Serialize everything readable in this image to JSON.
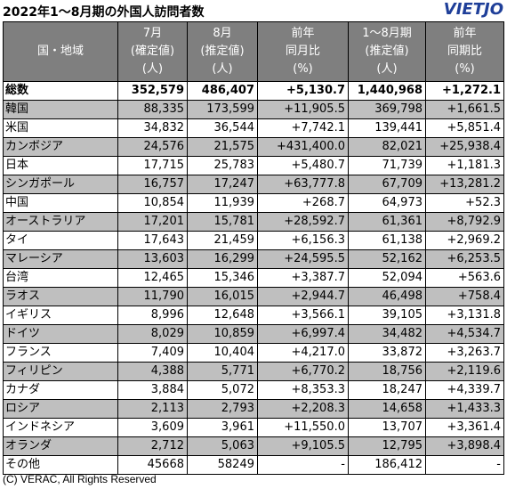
{
  "title": "2022年1～8月期の外国人訪問者数",
  "logo": "VIETJO",
  "headers": [
    [
      "国・地域"
    ],
    [
      "7月",
      "(確定値)",
      "(人)"
    ],
    [
      "8月",
      "(推定値)",
      "(人)"
    ],
    [
      "前年",
      "同月比",
      "(%)"
    ],
    [
      "1～8月期",
      "(推定値)",
      "(人)"
    ],
    [
      "前年",
      "同期比",
      "(%)"
    ]
  ],
  "rows": [
    [
      "総数",
      "352,579",
      "486,407",
      "+5,130.7",
      "1,440,968",
      "+1,272.1"
    ],
    [
      "韓国",
      "88,335",
      "173,599",
      "+11,905.5",
      "369,798",
      "+1,661.5"
    ],
    [
      "米国",
      "34,832",
      "36,544",
      "+7,742.1",
      "139,441",
      "+5,851.4"
    ],
    [
      "カンボジア",
      "24,576",
      "21,575",
      "+431,400.0",
      "82,021",
      "+25,938.4"
    ],
    [
      "日本",
      "17,715",
      "25,783",
      "+5,480.7",
      "71,739",
      "+1,181.3"
    ],
    [
      "シンガポール",
      "16,757",
      "17,247",
      "+63,777.8",
      "67,709",
      "+13,281.2"
    ],
    [
      "中国",
      "10,854",
      "11,939",
      "+268.7",
      "64,973",
      "+52.3"
    ],
    [
      "オーストラリア",
      "17,201",
      "15,781",
      "+28,592.7",
      "61,361",
      "+8,792.9"
    ],
    [
      "タイ",
      "17,643",
      "21,459",
      "+6,156.3",
      "61,138",
      "+2,969.2"
    ],
    [
      "マレーシア",
      "13,603",
      "16,299",
      "+24,595.5",
      "52,162",
      "+6,253.5"
    ],
    [
      "台湾",
      "12,465",
      "15,346",
      "+3,387.7",
      "52,094",
      "+563.6"
    ],
    [
      "ラオス",
      "11,790",
      "16,015",
      "+2,944.7",
      "46,498",
      "+758.4"
    ],
    [
      "イギリス",
      "8,996",
      "12,648",
      "+3,566.1",
      "39,105",
      "+3,131.8"
    ],
    [
      "ドイツ",
      "8,029",
      "10,859",
      "+6,997.4",
      "34,482",
      "+4,534.7"
    ],
    [
      "フランス",
      "7,409",
      "10,404",
      "+4,217.0",
      "33,872",
      "+3,263.7"
    ],
    [
      "フィリピン",
      "4,388",
      "5,771",
      "+6,770.2",
      "18,756",
      "+2,119.6"
    ],
    [
      "カナダ",
      "3,884",
      "5,072",
      "+8,353.3",
      "18,247",
      "+4,339.7"
    ],
    [
      "ロシア",
      "2,113",
      "2,793",
      "+2,208.3",
      "14,658",
      "+1,433.3"
    ],
    [
      "インドネシア",
      "3,609",
      "3,961",
      "+11,550.0",
      "13,707",
      "+3,361.4"
    ],
    [
      "オランダ",
      "2,712",
      "5,063",
      "+9,105.5",
      "12,795",
      "+3,898.4"
    ],
    [
      "その他",
      "45668",
      "58249",
      "-",
      "186,412",
      "-"
    ]
  ],
  "footer": "(C) VERAC, All Rights Reserved"
}
